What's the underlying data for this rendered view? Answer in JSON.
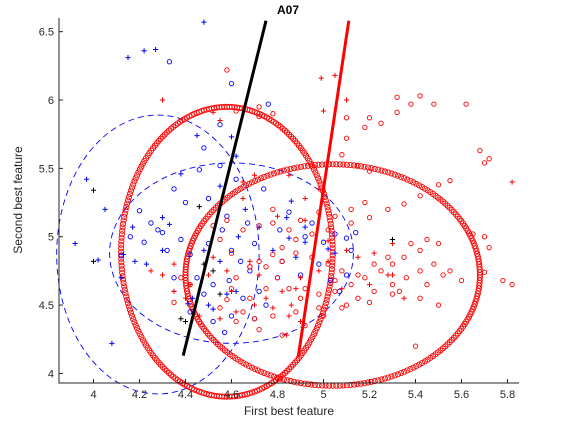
{
  "chart_data": {
    "type": "scatter",
    "title": "A07",
    "xlabel": "First best feature",
    "ylabel": "Second best feature",
    "xlim": [
      3.85,
      5.85
    ],
    "ylim": [
      3.93,
      6.6
    ],
    "xticks": [
      4,
      4.2,
      4.4,
      4.6,
      4.8,
      5,
      5.2,
      5.4,
      5.6,
      5.8
    ],
    "yticks": [
      4,
      4.5,
      5,
      5.5,
      6,
      6.5
    ],
    "colors": {
      "class1": "#0000ff",
      "class2": "#ff0000",
      "other": "#000000"
    },
    "series": [
      {
        "color": "#0000ff",
        "marker": "plus",
        "points": [
          [
            4.48,
            6.57
          ],
          [
            4.22,
            6.36
          ],
          [
            4.27,
            6.37
          ],
          [
            4.15,
            6.31
          ],
          [
            3.97,
            5.42
          ],
          [
            4.05,
            5.2
          ],
          [
            4.3,
            5.14
          ],
          [
            4.33,
            5.09
          ],
          [
            4.17,
            5.07
          ],
          [
            3.92,
            4.95
          ],
          [
            4.13,
            4.87
          ],
          [
            4.02,
            4.83
          ],
          [
            4.18,
            4.82
          ],
          [
            4.23,
            4.8
          ],
          [
            4.12,
            4.7
          ],
          [
            4.35,
            4.6
          ],
          [
            4.43,
            4.55
          ],
          [
            4.58,
            4.58
          ],
          [
            4.62,
            4.6
          ],
          [
            4.41,
            4.51
          ],
          [
            4.5,
            4.5
          ],
          [
            4.52,
            4.47
          ],
          [
            4.55,
            4.82
          ],
          [
            4.48,
            4.9
          ],
          [
            4.3,
            4.9
          ],
          [
            4.63,
            5.0
          ],
          [
            4.72,
            5.07
          ],
          [
            4.84,
            5.14
          ],
          [
            4.86,
            5.26
          ],
          [
            4.92,
            5.07
          ],
          [
            4.85,
            4.99
          ],
          [
            4.78,
            4.9
          ],
          [
            4.88,
            4.85
          ],
          [
            4.92,
            4.96
          ],
          [
            5.02,
            4.91
          ],
          [
            5.05,
            4.88
          ],
          [
            4.38,
            5.46
          ],
          [
            4.62,
            5.59
          ],
          [
            4.6,
            5.73
          ],
          [
            4.45,
            5.74
          ],
          [
            4.55,
            5.37
          ],
          [
            4.66,
            5.2
          ],
          [
            4.08,
            4.22
          ]
        ]
      },
      {
        "color": "#0000ff",
        "marker": "circle",
        "points": [
          [
            4.33,
            6.28
          ],
          [
            4.6,
            6.12
          ],
          [
            4.76,
            5.97
          ],
          [
            4.55,
            5.82
          ],
          [
            4.48,
            5.65
          ],
          [
            4.46,
            5.49
          ],
          [
            4.35,
            5.35
          ],
          [
            4.4,
            5.25
          ],
          [
            4.2,
            5.19
          ],
          [
            4.25,
            5.1
          ],
          [
            4.3,
            5.03
          ],
          [
            4.38,
            4.98
          ],
          [
            4.22,
            4.96
          ],
          [
            4.12,
            4.86
          ],
          [
            4.32,
            4.9
          ],
          [
            4.42,
            4.87
          ],
          [
            4.5,
            4.95
          ],
          [
            4.56,
            5.05
          ],
          [
            4.6,
            4.9
          ],
          [
            4.64,
            4.82
          ],
          [
            4.68,
            4.75
          ],
          [
            4.59,
            4.68
          ],
          [
            4.52,
            4.65
          ],
          [
            4.48,
            4.58
          ],
          [
            4.42,
            4.45
          ],
          [
            4.52,
            4.38
          ],
          [
            4.57,
            4.3
          ],
          [
            4.7,
            4.4
          ],
          [
            4.65,
            4.55
          ],
          [
            4.72,
            4.6
          ],
          [
            4.8,
            4.7
          ],
          [
            4.82,
            4.82
          ],
          [
            4.9,
            4.72
          ],
          [
            4.98,
            4.8
          ],
          [
            5.03,
            4.68
          ],
          [
            5.07,
            4.6
          ],
          [
            5.1,
            4.72
          ],
          [
            5.12,
            4.9
          ],
          [
            5.05,
            5.02
          ],
          [
            5.14,
            5.03
          ],
          [
            4.95,
            5.1
          ],
          [
            4.85,
            5.18
          ],
          [
            4.74,
            5.35
          ],
          [
            4.62,
            5.42
          ],
          [
            4.55,
            5.52
          ],
          [
            4.5,
            5.28
          ],
          [
            4.28,
            5.05
          ],
          [
            4.16,
            5.0
          ],
          [
            4.35,
            4.7
          ],
          [
            4.45,
            4.7
          ],
          [
            4.6,
            4.42
          ],
          [
            4.75,
            4.5
          ],
          [
            4.58,
            5.15
          ],
          [
            4.67,
            5.1
          ],
          [
            4.7,
            4.95
          ],
          [
            4.81,
            5.05
          ],
          [
            4.92,
            5.0
          ],
          [
            5.0,
            4.96
          ],
          [
            5.1,
            4.99
          ]
        ]
      },
      {
        "color": "#ff0000",
        "marker": "plus",
        "points": [
          [
            4.3,
            6.0
          ],
          [
            4.52,
            5.91
          ],
          [
            4.55,
            5.85
          ],
          [
            4.99,
            6.16
          ],
          [
            5.05,
            6.18
          ],
          [
            5.1,
            6.0
          ],
          [
            5.0,
            5.92
          ],
          [
            4.85,
            5.45
          ],
          [
            4.7,
            5.45
          ],
          [
            4.65,
            5.4
          ],
          [
            4.98,
            5.35
          ],
          [
            4.92,
            5.28
          ],
          [
            4.8,
            5.15
          ],
          [
            4.92,
            5.12
          ],
          [
            5.02,
            4.97
          ],
          [
            5.1,
            4.9
          ],
          [
            5.15,
            4.85
          ],
          [
            5.22,
            4.88
          ],
          [
            5.3,
            4.95
          ],
          [
            5.02,
            4.82
          ],
          [
            4.98,
            4.75
          ],
          [
            4.9,
            4.7
          ],
          [
            4.82,
            4.6
          ],
          [
            4.75,
            4.55
          ],
          [
            4.7,
            4.5
          ],
          [
            4.78,
            4.48
          ],
          [
            4.85,
            4.42
          ],
          [
            4.9,
            4.38
          ],
          [
            4.86,
            4.5
          ],
          [
            4.62,
            4.45
          ],
          [
            4.55,
            4.4
          ],
          [
            4.46,
            4.42
          ],
          [
            4.4,
            4.55
          ],
          [
            4.35,
            4.6
          ],
          [
            4.3,
            4.72
          ],
          [
            4.25,
            4.75
          ],
          [
            4.35,
            4.8
          ],
          [
            4.42,
            4.65
          ],
          [
            4.5,
            4.72
          ],
          [
            4.58,
            4.75
          ],
          [
            4.68,
            4.82
          ],
          [
            4.72,
            4.72
          ],
          [
            4.52,
            4.85
          ],
          [
            4.6,
            4.6
          ],
          [
            5.08,
            4.62
          ],
          [
            5.2,
            4.65
          ],
          [
            5.28,
            4.72
          ],
          [
            5.35,
            4.55
          ],
          [
            5.3,
            4.72
          ],
          [
            4.84,
            4.28
          ],
          [
            5.82,
            5.4
          ],
          [
            4.65,
            5.28
          ],
          [
            4.88,
            4.62
          ]
        ]
      },
      {
        "color": "#ff0000",
        "marker": "circle",
        "points": [
          [
            4.58,
            6.22
          ],
          [
            4.62,
            5.92
          ],
          [
            4.72,
            5.95
          ],
          [
            4.72,
            5.88
          ],
          [
            4.78,
            5.9
          ],
          [
            5.1,
            5.87
          ],
          [
            5.2,
            5.87
          ],
          [
            5.42,
            6.03
          ],
          [
            5.48,
            5.97
          ],
          [
            5.38,
            5.97
          ],
          [
            5.32,
            6.02
          ],
          [
            5.32,
            5.91
          ],
          [
            5.25,
            5.83
          ],
          [
            5.18,
            5.8
          ],
          [
            5.1,
            5.72
          ],
          [
            5.08,
            5.6
          ],
          [
            5.15,
            5.52
          ],
          [
            5.2,
            5.48
          ],
          [
            5.62,
            5.97
          ],
          [
            5.68,
            5.63
          ],
          [
            5.72,
            5.57
          ],
          [
            5.7,
            5.54
          ],
          [
            5.55,
            5.41
          ],
          [
            5.5,
            5.38
          ],
          [
            5.42,
            5.3
          ],
          [
            5.35,
            5.24
          ],
          [
            5.28,
            5.2
          ],
          [
            5.2,
            5.14
          ],
          [
            5.12,
            5.1
          ],
          [
            5.02,
            5.05
          ],
          [
            4.95,
            5.02
          ],
          [
            4.88,
            4.98
          ],
          [
            4.82,
            4.92
          ],
          [
            4.78,
            4.87
          ],
          [
            4.72,
            4.82
          ],
          [
            4.68,
            4.78
          ],
          [
            4.62,
            4.7
          ],
          [
            4.6,
            4.62
          ],
          [
            4.58,
            4.54
          ],
          [
            4.55,
            4.48
          ],
          [
            4.62,
            4.38
          ],
          [
            4.72,
            4.32
          ],
          [
            4.82,
            4.28
          ],
          [
            4.92,
            4.35
          ],
          [
            5.0,
            4.42
          ],
          [
            5.08,
            4.48
          ],
          [
            5.15,
            4.55
          ],
          [
            5.22,
            4.6
          ],
          [
            5.3,
            4.65
          ],
          [
            5.36,
            4.7
          ],
          [
            5.42,
            4.75
          ],
          [
            5.48,
            4.8
          ],
          [
            5.55,
            4.75
          ],
          [
            5.6,
            4.68
          ],
          [
            5.7,
            4.74
          ],
          [
            5.72,
            4.92
          ],
          [
            5.7,
            5.0
          ],
          [
            5.65,
            5.02
          ],
          [
            5.5,
            4.95
          ],
          [
            5.42,
            4.9
          ],
          [
            5.35,
            4.85
          ],
          [
            5.3,
            4.8
          ],
          [
            5.25,
            4.75
          ],
          [
            5.18,
            4.7
          ],
          [
            5.12,
            4.65
          ],
          [
            5.05,
            4.6
          ],
          [
            4.98,
            4.58
          ],
          [
            4.9,
            4.55
          ],
          [
            4.85,
            4.62
          ],
          [
            4.8,
            4.7
          ],
          [
            4.75,
            4.78
          ],
          [
            4.82,
            4.82
          ],
          [
            4.88,
            4.88
          ],
          [
            4.95,
            4.85
          ],
          [
            5.02,
            4.8
          ],
          [
            5.08,
            4.75
          ],
          [
            5.15,
            4.72
          ],
          [
            5.22,
            4.8
          ],
          [
            5.28,
            4.85
          ],
          [
            5.38,
            4.95
          ],
          [
            5.45,
            4.98
          ],
          [
            5.52,
            4.72
          ],
          [
            5.3,
            4.58
          ],
          [
            5.2,
            4.52
          ],
          [
            5.1,
            4.5
          ],
          [
            4.98,
            4.48
          ],
          [
            4.88,
            4.45
          ],
          [
            4.78,
            4.42
          ],
          [
            4.7,
            4.4
          ],
          [
            4.65,
            4.45
          ],
          [
            4.68,
            4.55
          ],
          [
            4.75,
            4.62
          ],
          [
            4.92,
            4.62
          ],
          [
            5.05,
            4.68
          ],
          [
            5.33,
            4.6
          ],
          [
            5.42,
            4.55
          ],
          [
            5.5,
            4.5
          ],
          [
            4.68,
            4.78
          ],
          [
            4.6,
            4.88
          ],
          [
            4.55,
            4.98
          ],
          [
            4.52,
            5.08
          ],
          [
            4.58,
            5.12
          ],
          [
            4.65,
            5.05
          ],
          [
            4.72,
            5.08
          ],
          [
            4.78,
            5.1
          ],
          [
            4.85,
            5.05
          ],
          [
            4.9,
            5.12
          ],
          [
            4.98,
            5.18
          ],
          [
            5.05,
            5.15
          ],
          [
            5.12,
            5.2
          ],
          [
            5.18,
            5.25
          ],
          [
            4.42,
            4.65
          ],
          [
            4.38,
            4.7
          ],
          [
            4.35,
            4.52
          ],
          [
            5.78,
            4.68
          ],
          [
            5.82,
            4.65
          ],
          [
            5.4,
            4.2
          ],
          [
            5.45,
            4.65
          ],
          [
            4.78,
            5.2
          ]
        ]
      },
      {
        "color": "#000000",
        "marker": "plus",
        "points": [
          [
            4.0,
            5.34
          ],
          [
            4.0,
            4.82
          ],
          [
            4.38,
            4.4
          ],
          [
            4.4,
            4.38
          ],
          [
            4.48,
            4.8
          ],
          [
            4.52,
            4.75
          ],
          [
            4.55,
            4.58
          ],
          [
            5.3,
            4.98
          ],
          [
            4.46,
            5.22
          ]
        ]
      }
    ],
    "ellipses": [
      {
        "color": "#0000ff",
        "style": "dashed",
        "cx": 4.28,
        "cy": 4.87,
        "rx": 0.44,
        "ry": 1.02
      },
      {
        "color": "#0000ff",
        "style": "dashed",
        "cx": 4.6,
        "cy": 4.88,
        "rx": 0.53,
        "ry": 0.66
      },
      {
        "color": "#ff0000",
        "style": "circles",
        "cx": 4.58,
        "cy": 4.89,
        "rx": 0.46,
        "ry": 1.06
      },
      {
        "color": "#ff0000",
        "style": "circles",
        "cx": 5.04,
        "cy": 4.72,
        "rx": 0.64,
        "ry": 0.81
      }
    ],
    "lines": [
      {
        "color": "#000000",
        "x": [
          4.39,
          4.75
        ],
        "y": [
          4.13,
          6.58
        ]
      },
      {
        "color": "#ff0000",
        "x": [
          4.89,
          5.11
        ],
        "y": [
          4.12,
          6.58
        ]
      }
    ]
  }
}
